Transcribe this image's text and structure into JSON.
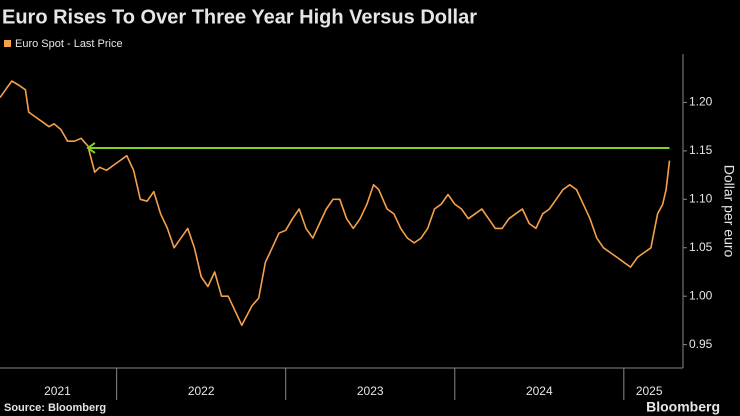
{
  "chart_data": {
    "type": "line",
    "title": "Euro Rises To Over Three Year High Versus Dollar",
    "y_label": "Dollar per euro",
    "source": "Source: Bloomberg",
    "brand": "Bloomberg",
    "xlim": [
      2021.31,
      2025.35
    ],
    "ylim": [
      0.93,
      1.25
    ],
    "yticks": [
      0.95,
      1.0,
      1.05,
      1.1,
      1.15,
      1.2
    ],
    "ytick_labels": [
      "0.95",
      "1.00",
      "1.05",
      "1.10",
      "1.15",
      "1.20"
    ],
    "xticks": [
      {
        "value": 2021.65,
        "label": "2021"
      },
      {
        "value": 2022.5,
        "label": "2022"
      },
      {
        "value": 2023.5,
        "label": "2023"
      },
      {
        "value": 2024.5,
        "label": "2024"
      },
      {
        "value": 2025.15,
        "label": "2025"
      }
    ],
    "year_dividers": [
      2022,
      2023,
      2024,
      2025
    ],
    "arrow": {
      "y": 1.153,
      "x": [
        2025.27,
        2021.83
      ],
      "color": "#7ed321"
    },
    "series": [
      {
        "name": "Euro Spot - Last Price",
        "color": "#f5a04a",
        "x": [
          2021.31,
          2021.35,
          2021.38,
          2021.42,
          2021.46,
          2021.48,
          2021.52,
          2021.56,
          2021.6,
          2021.63,
          2021.67,
          2021.71,
          2021.75,
          2021.79,
          2021.83,
          2021.87,
          2021.9,
          2021.94,
          2021.98,
          2022.02,
          2022.06,
          2022.1,
          2022.14,
          2022.18,
          2022.22,
          2022.26,
          2022.3,
          2022.34,
          2022.38,
          2022.42,
          2022.46,
          2022.5,
          2022.54,
          2022.58,
          2022.62,
          2022.66,
          2022.7,
          2022.74,
          2022.77,
          2022.8,
          2022.84,
          2022.88,
          2022.92,
          2022.96,
          2023.0,
          2023.04,
          2023.08,
          2023.12,
          2023.16,
          2023.2,
          2023.24,
          2023.28,
          2023.32,
          2023.36,
          2023.4,
          2023.44,
          2023.48,
          2023.52,
          2023.55,
          2023.6,
          2023.64,
          2023.68,
          2023.72,
          2023.76,
          2023.8,
          2023.84,
          2023.88,
          2023.92,
          2023.96,
          2024.0,
          2024.04,
          2024.08,
          2024.12,
          2024.16,
          2024.2,
          2024.24,
          2024.28,
          2024.32,
          2024.36,
          2024.4,
          2024.44,
          2024.48,
          2024.52,
          2024.56,
          2024.6,
          2024.64,
          2024.68,
          2024.72,
          2024.76,
          2024.8,
          2024.84,
          2024.88,
          2024.92,
          2024.96,
          2025.0,
          2025.04,
          2025.08,
          2025.12,
          2025.16,
          2025.2,
          2025.23,
          2025.25,
          2025.27
        ],
        "values": [
          1.205,
          1.215,
          1.222,
          1.218,
          1.213,
          1.19,
          1.185,
          1.18,
          1.175,
          1.178,
          1.172,
          1.16,
          1.16,
          1.163,
          1.155,
          1.128,
          1.133,
          1.13,
          1.135,
          1.14,
          1.145,
          1.13,
          1.1,
          1.098,
          1.108,
          1.085,
          1.07,
          1.05,
          1.06,
          1.07,
          1.05,
          1.02,
          1.01,
          1.025,
          1.0,
          1.0,
          0.985,
          0.97,
          0.98,
          0.99,
          0.998,
          1.035,
          1.05,
          1.065,
          1.068,
          1.08,
          1.09,
          1.07,
          1.06,
          1.075,
          1.09,
          1.1,
          1.1,
          1.08,
          1.07,
          1.08,
          1.095,
          1.115,
          1.11,
          1.09,
          1.085,
          1.07,
          1.06,
          1.055,
          1.06,
          1.07,
          1.09,
          1.095,
          1.105,
          1.095,
          1.09,
          1.08,
          1.085,
          1.09,
          1.08,
          1.07,
          1.07,
          1.08,
          1.085,
          1.09,
          1.075,
          1.07,
          1.085,
          1.09,
          1.1,
          1.11,
          1.115,
          1.11,
          1.095,
          1.08,
          1.06,
          1.05,
          1.045,
          1.04,
          1.035,
          1.03,
          1.04,
          1.045,
          1.05,
          1.085,
          1.095,
          1.11,
          1.14
        ]
      }
    ]
  }
}
